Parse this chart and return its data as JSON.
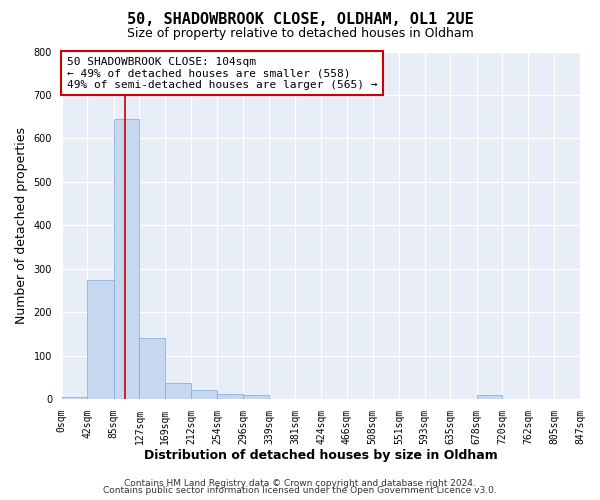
{
  "title": "50, SHADOWBROOK CLOSE, OLDHAM, OL1 2UE",
  "subtitle": "Size of property relative to detached houses in Oldham",
  "xlabel": "Distribution of detached houses by size in Oldham",
  "ylabel": "Number of detached properties",
  "bar_color": "#c5d8f0",
  "bar_edge_color": "#7aaad4",
  "bin_edges": [
    0,
    42,
    85,
    127,
    169,
    212,
    254,
    296,
    339,
    381,
    424,
    466,
    508,
    551,
    593,
    635,
    678,
    720,
    762,
    805,
    847
  ],
  "bar_heights": [
    5,
    275,
    645,
    140,
    37,
    20,
    12,
    8,
    0,
    0,
    0,
    0,
    0,
    0,
    0,
    0,
    8,
    0,
    0,
    0
  ],
  "tick_labels": [
    "0sqm",
    "42sqm",
    "85sqm",
    "127sqm",
    "169sqm",
    "212sqm",
    "254sqm",
    "296sqm",
    "339sqm",
    "381sqm",
    "424sqm",
    "466sqm",
    "508sqm",
    "551sqm",
    "593sqm",
    "635sqm",
    "678sqm",
    "720sqm",
    "762sqm",
    "805sqm",
    "847sqm"
  ],
  "ylim": [
    0,
    800
  ],
  "yticks": [
    0,
    100,
    200,
    300,
    400,
    500,
    600,
    700,
    800
  ],
  "vline_x": 104,
  "vline_color": "#cc0000",
  "annotation_title": "50 SHADOWBROOK CLOSE: 104sqm",
  "annotation_line1": "← 49% of detached houses are smaller (558)",
  "annotation_line2": "49% of semi-detached houses are larger (565) →",
  "annotation_box_facecolor": "#ffffff",
  "annotation_box_edgecolor": "#cc0000",
  "footer1": "Contains HM Land Registry data © Crown copyright and database right 2024.",
  "footer2": "Contains public sector information licensed under the Open Government Licence v3.0.",
  "bg_color": "#ffffff",
  "plot_bg_color": "#e8eef8",
  "grid_color": "#ffffff",
  "title_fontsize": 11,
  "subtitle_fontsize": 9,
  "axis_label_fontsize": 9,
  "tick_fontsize": 7,
  "annotation_fontsize": 8,
  "footer_fontsize": 6.5
}
